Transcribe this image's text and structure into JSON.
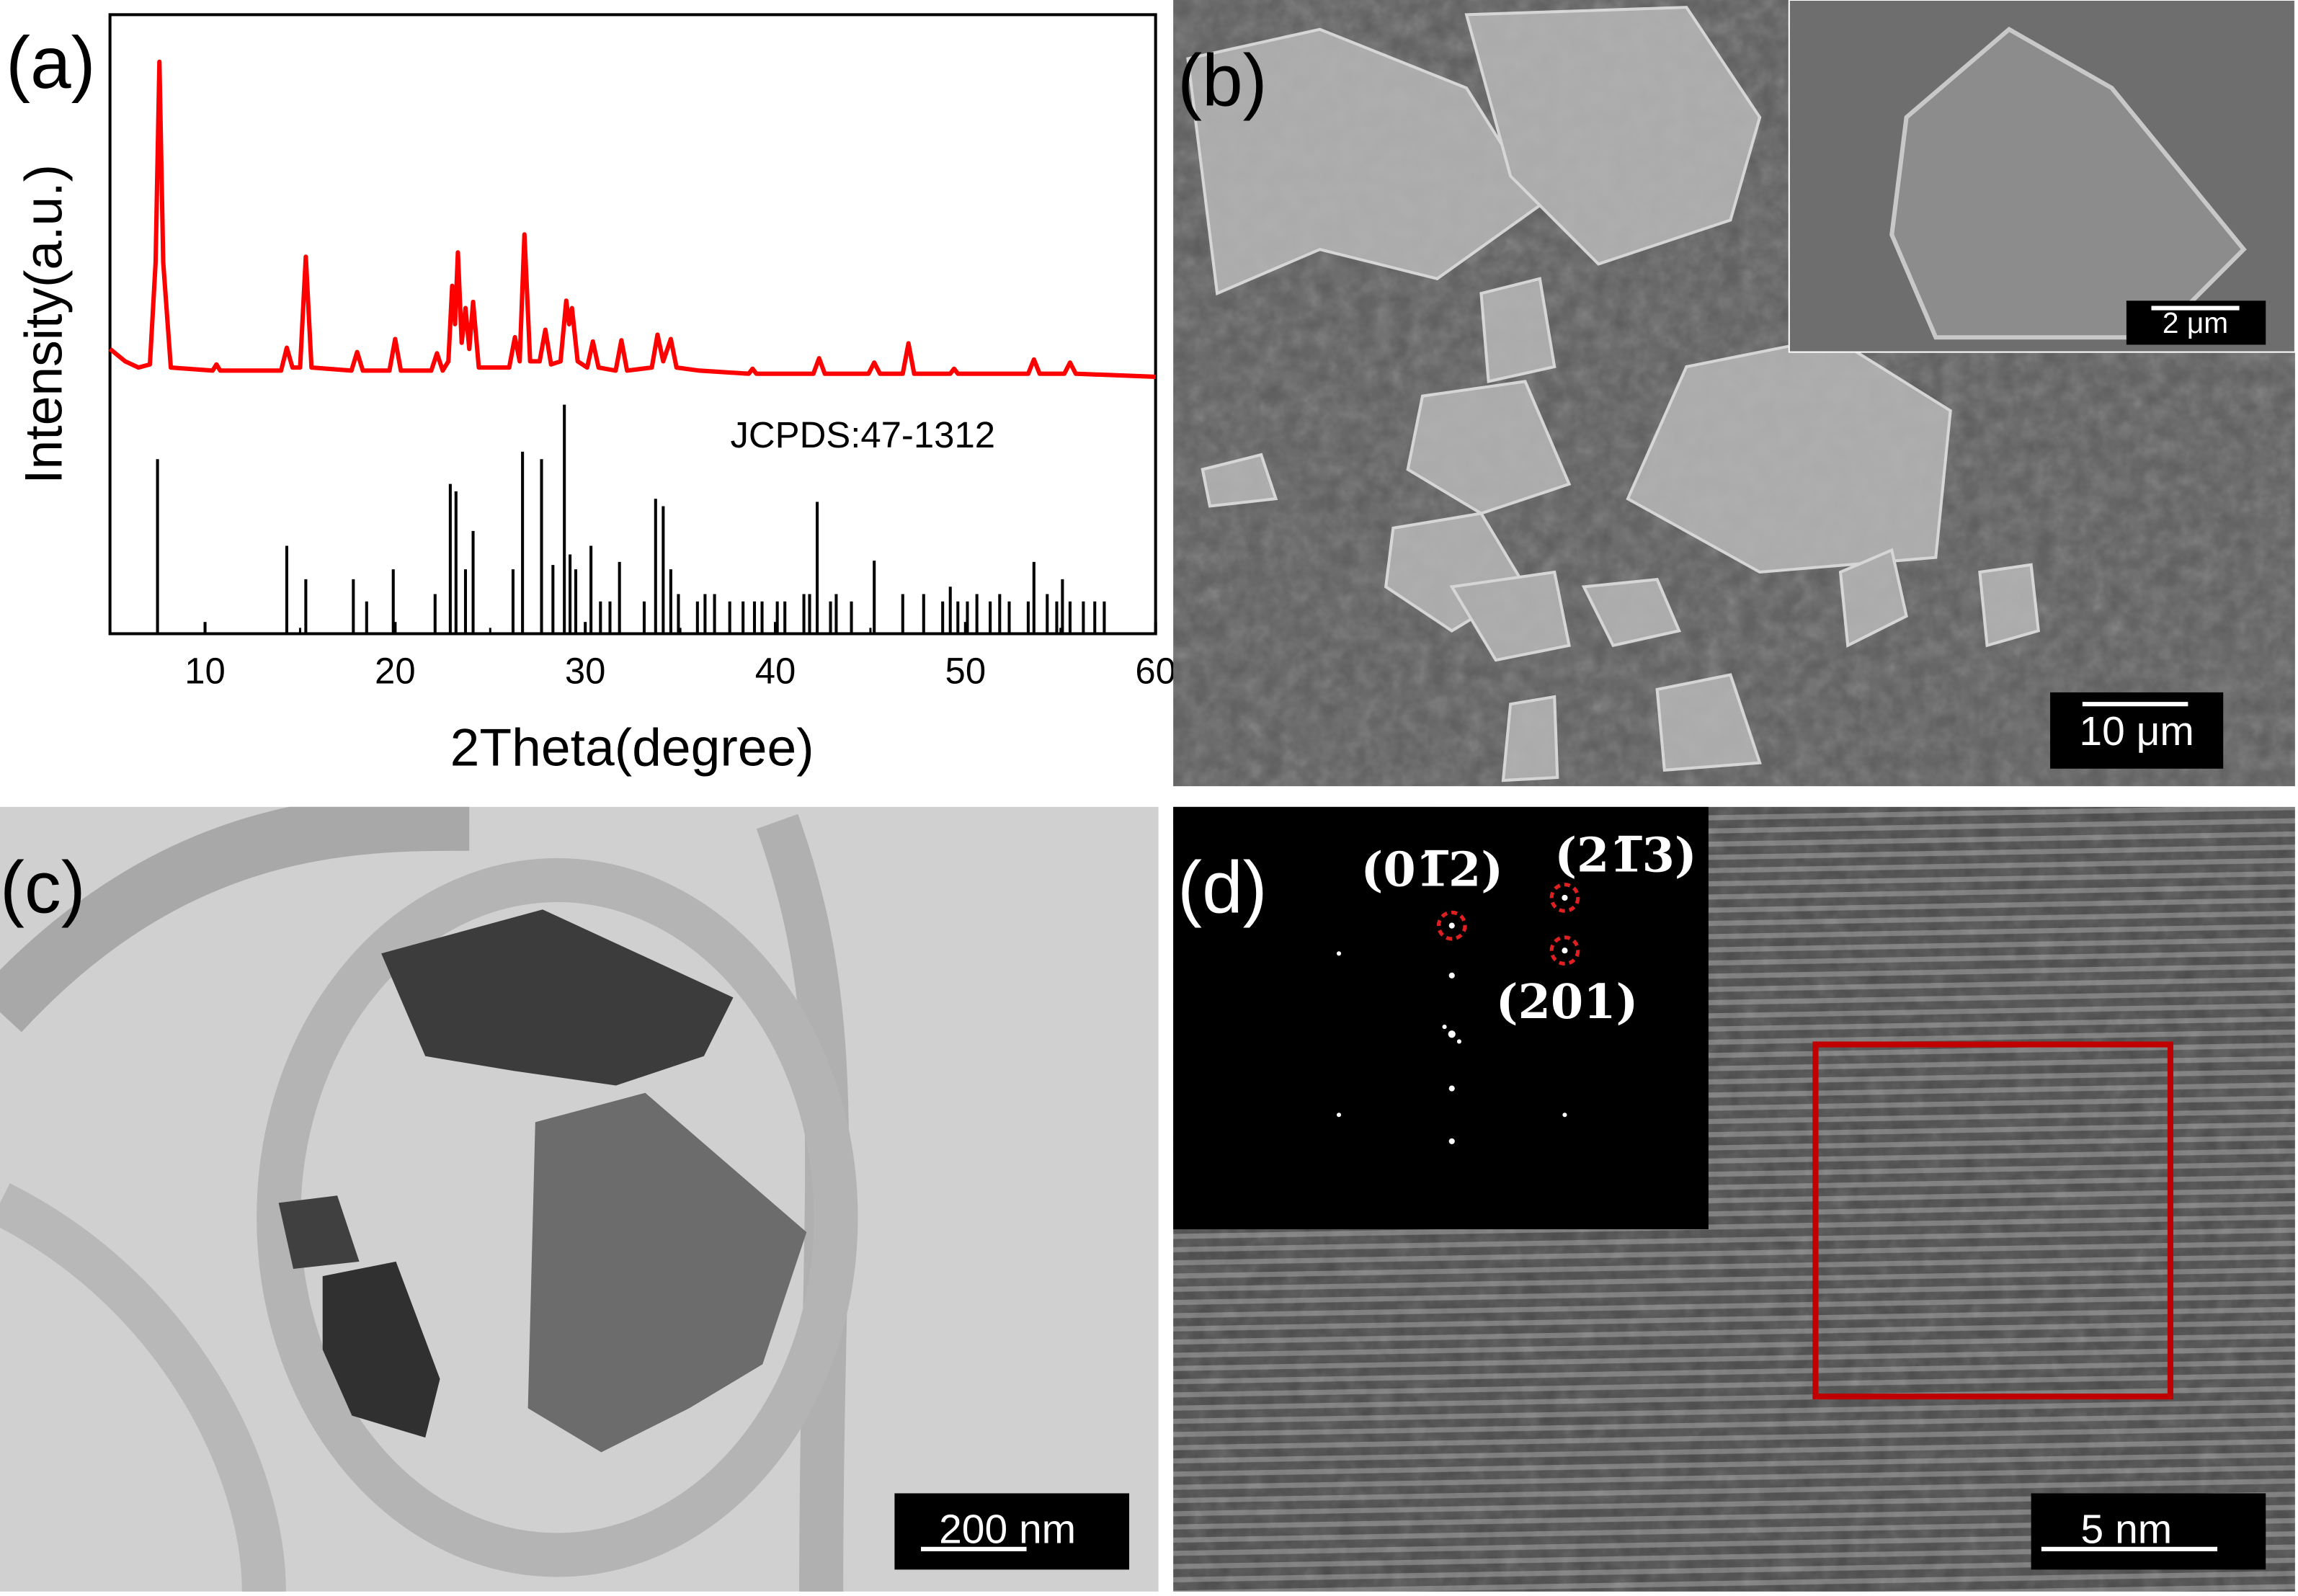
{
  "chart_data": {
    "type": "line",
    "panel_label": "(a)",
    "xlabel": "2Theta(degree)",
    "ylabel": "Intensity(a.u.)",
    "xlim": [
      5,
      60
    ],
    "xticks": [
      10,
      20,
      30,
      40,
      50,
      60
    ],
    "ylim": [
      0,
      100
    ],
    "series": [
      {
        "type": "line",
        "color": "#ff0000",
        "x": [
          5,
          5.8,
          6.5,
          7.1,
          7.4,
          7.6,
          7.8,
          8.2,
          10.4,
          10.6,
          10.8,
          14.0,
          14.3,
          14.6,
          15.0,
          15.3,
          15.6,
          17.7,
          18.0,
          18.3,
          19.7,
          20.0,
          20.3,
          21.9,
          22.2,
          22.5,
          22.8,
          23.0,
          23.15,
          23.3,
          23.5,
          23.7,
          23.9,
          24.1,
          24.4,
          26.0,
          26.3,
          26.55,
          26.8,
          27.1,
          27.6,
          27.9,
          28.2,
          28.7,
          29.0,
          29.15,
          29.3,
          29.6,
          30.1,
          30.4,
          30.7,
          31.6,
          31.9,
          32.2,
          33.5,
          33.8,
          34.1,
          34.5,
          34.8,
          36,
          38.6,
          38.8,
          39,
          42.0,
          42.3,
          42.6,
          44.9,
          45.2,
          45.5,
          46.7,
          47.0,
          47.3,
          49.2,
          49.4,
          49.6,
          53.3,
          53.6,
          53.9,
          55.2,
          55.5,
          55.8,
          60
        ],
        "values": [
          46,
          44,
          43,
          43.5,
          60,
          92.4,
          60,
          43,
          42.5,
          43.5,
          42.5,
          42.5,
          46.2,
          43,
          43,
          60.9,
          43,
          42.5,
          45.5,
          42.5,
          42.5,
          47.6,
          42.5,
          42.5,
          45.3,
          42.5,
          44,
          56.2,
          50,
          61.6,
          47,
          52.6,
          46,
          53.6,
          43,
          43,
          47.9,
          44,
          64.5,
          44,
          44,
          49.1,
          43.5,
          44,
          53.8,
          50,
          52.6,
          44,
          43,
          47.2,
          43,
          42.5,
          47.4,
          42.5,
          43,
          48.3,
          44,
          47.6,
          43,
          42.5,
          42,
          42.8,
          42,
          42,
          44.5,
          42,
          42,
          43.8,
          42,
          42,
          46.9,
          42,
          42,
          42.8,
          42,
          42,
          44.3,
          42,
          42,
          43.8,
          42,
          41.5
        ]
      },
      {
        "type": "stick",
        "name": "JCPDS:47-1312",
        "color": "#000000",
        "x": [
          7.5,
          14.3,
          15.3,
          17.8,
          18.5,
          19.9,
          22.1,
          22.9,
          23.2,
          23.7,
          24.1,
          26.2,
          26.7,
          27.7,
          28.3,
          28.9,
          29.2,
          29.5,
          30.3,
          30.8,
          31.3,
          31.8,
          33.1,
          33.7,
          34.1,
          34.5,
          34.9,
          35.9,
          36.3,
          36.8,
          37.6,
          38.3,
          38.9,
          39.3,
          40.1,
          40.5,
          41.5,
          41.8,
          42.2,
          42.9,
          43.2,
          44,
          45.2,
          46.7,
          47.8,
          48.8,
          49.2,
          49.6,
          50.1,
          50.6,
          51.3,
          51.8,
          52.3,
          53.3,
          53.6,
          54.3,
          54.8,
          55.1,
          55.5,
          56.2,
          56.8,
          57.3
        ],
        "values": [
          28.2,
          14.2,
          8.8,
          8.8,
          5.2,
          10.4,
          6.4,
          24.2,
          23.0,
          10.4,
          16.6,
          10.4,
          29.4,
          28.2,
          11.1,
          37.0,
          12.8,
          10.4,
          14.2,
          5.2,
          5.2,
          11.6,
          5.2,
          21.8,
          20.6,
          10.4,
          6.4,
          5.2,
          6.4,
          6.4,
          5.2,
          5.2,
          5.2,
          5.2,
          5.2,
          5.2,
          6.4,
          6.4,
          21.3,
          5.2,
          6.4,
          5.2,
          11.8,
          6.4,
          6.4,
          5.2,
          7.6,
          5.2,
          5.2,
          6.4,
          5.2,
          6.4,
          5.2,
          5.2,
          11.6,
          6.4,
          5.2,
          8.8,
          5.2,
          5.2,
          5.2,
          5.2
        ]
      }
    ]
  },
  "panels": [
    {
      "label": "(b)",
      "scale_bar": "10 μm",
      "inset_scale_bar": "2 μm"
    },
    {
      "label": "(c)",
      "scale_bar": "200 nm"
    },
    {
      "label": "(d)",
      "fft_labels": [
        "(01̅2)",
        "(21̅3)",
        "(201)"
      ],
      "scale_bar": "5 nm"
    }
  ]
}
